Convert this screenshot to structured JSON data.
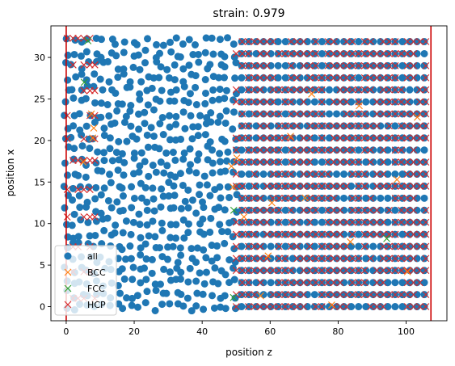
{
  "chart_data": {
    "type": "scatter",
    "title": "strain: 0.979",
    "xlabel": "position z",
    "ylabel": "position x",
    "xlim": [
      -4.5,
      112
    ],
    "ylim": [
      -1.7,
      33.8
    ],
    "xticks": [
      0,
      20,
      40,
      60,
      80,
      100
    ],
    "yticks": [
      0,
      5,
      10,
      15,
      20,
      25,
      30
    ],
    "grid": false,
    "legend_position": "lower-left",
    "vertical_lines": [
      {
        "x": 0,
        "color": "#cc0000"
      },
      {
        "x": 107.3,
        "color": "#cc0000"
      }
    ],
    "series": [
      {
        "name": "all",
        "marker": "filled-circle",
        "color": "#1f77b4",
        "regions": [
          {
            "x_range": [
              0,
              107.3
            ],
            "y_range": [
              0,
              32.3
            ]
          }
        ]
      },
      {
        "name": "BCC",
        "marker": "x",
        "color": "#ff7f0e",
        "points": [
          [
            5,
            17.4
          ],
          [
            7.4,
            23.2
          ],
          [
            7.8,
            20.3
          ],
          [
            8.1,
            21.5
          ],
          [
            48.6,
            16.9
          ],
          [
            49.1,
            14.4
          ],
          [
            50.2,
            17.9
          ],
          [
            52.3,
            10.8
          ],
          [
            57.2,
            1.3
          ],
          [
            59.4,
            6.1
          ],
          [
            60.5,
            12.5
          ],
          [
            66,
            20.5
          ],
          [
            70.3,
            13.1
          ],
          [
            72.2,
            25.6
          ],
          [
            78.1,
            0.2
          ],
          [
            83.6,
            7.8
          ],
          [
            86.2,
            24.2
          ],
          [
            97.3,
            15.3
          ],
          [
            100.4,
            4.2
          ],
          [
            103.3,
            22.8
          ]
        ]
      },
      {
        "name": "FCC",
        "marker": "x",
        "color": "#2ca02c",
        "points": [
          [
            5.3,
            27.0
          ],
          [
            6.4,
            32.0
          ],
          [
            49.3,
            11.6
          ],
          [
            49.2,
            1.1
          ],
          [
            94.3,
            8.2
          ]
        ]
      },
      {
        "name": "HCP",
        "marker": "x",
        "color": "#d62728",
        "side_columns": [
          0.3,
          2.0,
          3.5,
          5.2,
          7.0,
          8.4
        ],
        "side_values": [
          1.0,
          4.2,
          7.2,
          10.8,
          14.1,
          17.6,
          20.2,
          23.0,
          26.0,
          29.1,
          32.3
        ],
        "regions": [
          {
            "x_range": [
              50,
              107.3
            ],
            "y_range": [
              0,
              32.3
            ]
          }
        ]
      }
    ]
  }
}
